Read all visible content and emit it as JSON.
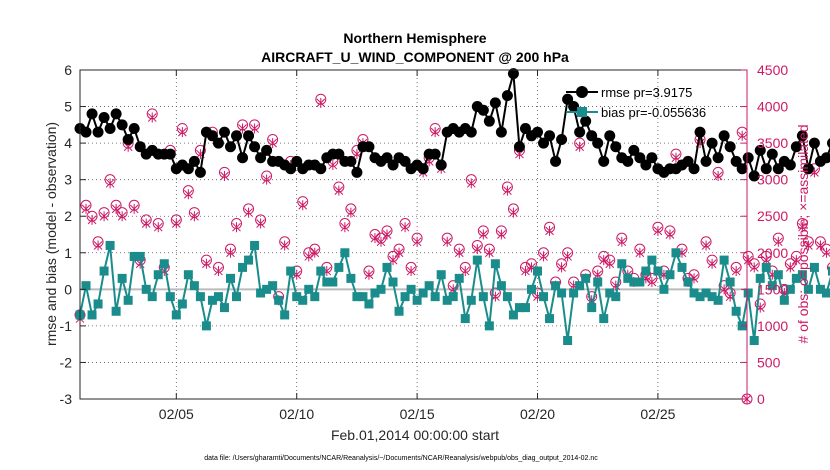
{
  "chart_data": {
    "type": "line",
    "title": "Northern Hemisphere",
    "subtitle": "AIRCRAFT_U_WIND_COMPONENT @ 200 hPa",
    "xlabel": "Feb.01,2014 00:00:00 start",
    "ylabel": "rmse and bias (model - observation)",
    "y2label": "# of obs: o=possible; ×=assimilated",
    "footnote": "data file: /Users/gharamti/Documents/NCAR/Reanalysis/~/Documents/NCAR/Reanalysis/webpub/obs_diag_output_2014-02.nc",
    "xlim": [
      1,
      28.7
    ],
    "ylim": [
      -3,
      6
    ],
    "y2lim": [
      0,
      4500
    ],
    "x_ticks": [
      5,
      10,
      15,
      20,
      25
    ],
    "x_tick_labels": [
      "02/05",
      "02/10",
      "02/15",
      "02/20",
      "02/25"
    ],
    "y_ticks": [
      -3,
      -2,
      -1,
      0,
      1,
      2,
      3,
      4,
      5,
      6
    ],
    "y_tick_labels": [
      "-3",
      "-2",
      "-1",
      "0",
      "1",
      "2",
      "3",
      "4",
      "5",
      "6"
    ],
    "y2_ticks": [
      0,
      500,
      1000,
      1500,
      2000,
      2500,
      3000,
      3500,
      4000,
      4500
    ],
    "y2_tick_labels": [
      "0",
      "500",
      "1000",
      "1500",
      "2000",
      "2500",
      "3000",
      "3500",
      "4000",
      "4500"
    ],
    "grid": true,
    "legend_position": "top-right",
    "colors": {
      "rmse": "#000000",
      "bias": "#1a8c8c",
      "obs": "#cc1a66",
      "zero_line": "#bbbbbb"
    },
    "x_start": 1.0,
    "x_step": 0.25,
    "rmse": {
      "legend": "rmse pr=3.9175",
      "values": [
        4.4,
        4.3,
        4.8,
        4.3,
        4.7,
        4.4,
        4.8,
        4.5,
        4.1,
        4.4,
        3.9,
        3.7,
        3.8,
        3.7,
        3.7,
        3.7,
        3.3,
        3.4,
        3.3,
        3.5,
        3.2,
        4.3,
        4.2,
        4.0,
        4.3,
        3.9,
        4.2,
        3.6,
        4.2,
        3.9,
        3.6,
        3.8,
        3.5,
        3.5,
        3.4,
        3.3,
        3.5,
        3.3,
        3.4,
        3.4,
        3.3,
        3.6,
        3.7,
        3.7,
        3.5,
        3.5,
        3.2,
        3.9,
        3.9,
        3.6,
        3.5,
        3.6,
        3.4,
        3.6,
        3.5,
        3.3,
        3.4,
        3.3,
        3.7,
        3.7,
        3.4,
        4.3,
        4.4,
        4.3,
        4.4,
        4.3,
        5.0,
        4.9,
        4.6,
        5.1,
        4.3,
        5.3,
        5.9,
        3.9,
        4.4,
        4.2,
        4.3,
        4.0,
        4.2,
        3.5,
        4.1,
        5.2,
        5.0,
        4.3,
        4.6,
        4.2,
        4.0,
        3.5,
        4.2,
        3.9,
        3.6,
        3.5,
        3.8,
        3.6,
        3.4,
        3.6,
        3.3,
        3.2,
        3.3,
        3.3,
        3.4,
        3.5,
        3.3,
        4.3,
        3.5,
        4.0,
        3.6,
        4.2,
        3.9,
        3.5,
        3.3,
        3.6,
        3.1,
        3.8,
        3.3,
        3.7,
        3.3,
        3.5,
        3.4,
        3.9,
        4.2,
        3.3,
        4.0,
        3.5,
        3.6,
        4.0,
        3.9,
        3.3,
        3.5,
        3.9,
        3.6,
        3.4,
        3.9,
        4.4,
        3.8,
        3.5,
        5.0,
        4.6,
        3.5,
        3.6,
        3.5
      ]
    },
    "bias": {
      "legend": "bias pr=-0.055636",
      "values": [
        -0.7,
        0.1,
        -0.7,
        -0.4,
        0.5,
        1.2,
        -0.6,
        0.3,
        -0.3,
        0.9,
        0.9,
        0.0,
        -0.2,
        0.4,
        0.7,
        -0.2,
        -0.7,
        -0.4,
        0.4,
        0.1,
        -0.2,
        -1.0,
        -0.3,
        -0.2,
        -0.5,
        0.3,
        -0.2,
        0.6,
        0.8,
        1.2,
        -0.1,
        0.0,
        0.1,
        -0.3,
        -0.7,
        0.5,
        -0.2,
        -0.3,
        0.0,
        -0.2,
        0.5,
        0.2,
        0.2,
        0.6,
        1.0,
        0.3,
        -0.2,
        -0.2,
        -0.4,
        -0.1,
        0.0,
        0.6,
        0.2,
        -0.6,
        -0.2,
        0.0,
        -0.3,
        -0.1,
        0.1,
        -0.2,
        0.4,
        -0.3,
        -0.2,
        0.3,
        -0.8,
        -0.3,
        0.8,
        -0.2,
        -1.0,
        0.7,
        0.1,
        -0.2,
        -0.7,
        -0.5,
        -0.5,
        0.0,
        0.5,
        -0.2,
        -0.8,
        0.1,
        -0.1,
        -1.4,
        -0.1,
        0.1,
        0.3,
        -0.5,
        0.2,
        -0.8,
        -0.1,
        -0.2,
        0.7,
        0.3,
        0.2,
        0.2,
        0.5,
        0.8,
        0.5,
        0.0,
        0.4,
        1.0,
        0.6,
        0.2,
        -0.1,
        -0.2,
        -0.1,
        -0.2,
        -0.3,
        0.8,
        0.2,
        -0.6,
        -1.0,
        -0.1,
        -1.4,
        0.3,
        0.6,
        0.1,
        0.4,
        -0.3,
        0.0,
        0.3,
        0.4,
        0.0,
        0.6,
        0.0,
        -0.1,
        0.5,
        0.5,
        0.4,
        -0.5,
        0.5,
        0.2,
        0.0,
        0.0,
        0.4,
        -0.2,
        0.5,
        -1.1,
        -0.4,
        -0.5,
        -0.6,
        -0.7
      ]
    },
    "obs_possible": {
      "values": [
        1150,
        2650,
        2500,
        2150,
        2550,
        3000,
        2650,
        2550,
        3500,
        2650,
        1900,
        2450,
        3900,
        2400,
        1800,
        3400,
        2450,
        3700,
        2850,
        2550,
        3400,
        1900,
        3650,
        1800,
        3100,
        2050,
        2400,
        3750,
        2600,
        3750,
        2450,
        3050,
        3550,
        1400,
        2150,
        3250,
        1750,
        2700,
        2000,
        2050,
        4100,
        1800,
        3250,
        2900,
        2400,
        2600,
        3400,
        3550,
        1750,
        2250,
        2200,
        2300,
        1950,
        2050,
        2400,
        1800,
        2200,
        3150,
        3300,
        3700,
        3200,
        2200,
        1550,
        2050,
        1800,
        3000,
        2100,
        2300,
        2050,
        1450,
        2300,
        2900,
        2600,
        3400,
        1800,
        1850,
        1450,
        2000,
        2350,
        1600,
        1850,
        2000,
        1600,
        3500,
        1700,
        1400,
        1750,
        1950,
        1900,
        1600,
        2200,
        1750,
        1650,
        2050,
        1700,
        1650,
        2350,
        1750,
        2300,
        3350,
        2050,
        1650,
        1700,
        3550,
        2150,
        1900,
        3100,
        1550,
        1450,
        1800,
        3650,
        1950,
        1850,
        1300,
        1950,
        1750,
        2200,
        1500,
        1850,
        1950,
        2400,
        2150,
        3150,
        2150,
        2050,
        1800,
        3500,
        1400,
        2350,
        3000,
        1800,
        3250,
        2050,
        1950,
        1800,
        2300,
        2550,
        1900,
        2200,
        2100,
        1550,
        2250,
        1750
      ]
    },
    "obs_assimilated": {
      "values": [
        1100,
        2600,
        2450,
        2100,
        2500,
        2950,
        2600,
        2500,
        3450,
        2600,
        1850,
        2400,
        3850,
        2350,
        1750,
        3350,
        2400,
        3650,
        2800,
        2500,
        3350,
        1850,
        3600,
        1750,
        3050,
        2000,
        2350,
        3700,
        2550,
        3700,
        2400,
        3000,
        3500,
        1350,
        2100,
        3200,
        1700,
        2650,
        1950,
        2000,
        4050,
        1750,
        3200,
        2850,
        2350,
        2550,
        3350,
        3500,
        1700,
        2200,
        2150,
        2250,
        1900,
        2000,
        2350,
        1750,
        2150,
        3100,
        3250,
        3650,
        3150,
        2150,
        1500,
        2000,
        1750,
        2950,
        2050,
        2250,
        2000,
        1400,
        2250,
        2850,
        2550,
        3350,
        1750,
        1800,
        1400,
        1950,
        2300,
        1550,
        1800,
        1950,
        1550,
        3450,
        1650,
        1350,
        1700,
        1900,
        1850,
        1550,
        2150,
        1700,
        1600,
        2000,
        1650,
        1600,
        2300,
        1700,
        2250,
        3300,
        2000,
        1600,
        1650,
        3500,
        2100,
        1850,
        3050,
        1500,
        1400,
        1750,
        3600,
        1900,
        1800,
        1250,
        1900,
        1700,
        2150,
        1450,
        1800,
        1900,
        2350,
        2100,
        3100,
        2100,
        2000,
        1750,
        3450,
        1350,
        2300,
        2950,
        1750,
        3200,
        2000,
        1900,
        1750,
        2250,
        2500,
        1850,
        2150,
        2050,
        1500,
        2200,
        1700
      ]
    }
  }
}
